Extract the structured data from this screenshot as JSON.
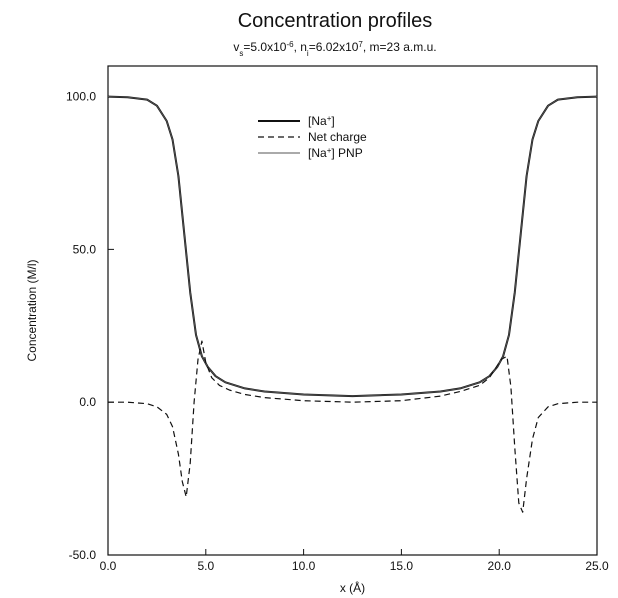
{
  "chart_data": {
    "type": "line",
    "title": "Concentration profiles",
    "subtitle": {
      "parts": [
        {
          "text": "v",
          "sub": "s",
          "rest": "=5.0x10"
        },
        {
          "sup": "-6"
        },
        {
          "text": ", n",
          "sub": "i",
          "rest": "=6.02x10"
        },
        {
          "sup": "7"
        },
        {
          "text": ", m=23 a.m.u."
        }
      ]
    },
    "xlabel": "x (Å)",
    "ylabel": "Concentration (M/l)",
    "xlim": [
      0,
      25
    ],
    "ylim": [
      -50,
      110
    ],
    "xticks": [
      "0.0",
      "5.0",
      "10.0",
      "15.0",
      "20.0",
      "25.0"
    ],
    "xtick_values": [
      0,
      5,
      10,
      15,
      20,
      25
    ],
    "yticks": [
      "-50.0",
      "0.0",
      "50.0",
      "100.0"
    ],
    "ytick_values": [
      -50,
      0,
      50,
      100
    ],
    "grid": false,
    "legend": {
      "placement": "top-center",
      "entries": [
        {
          "label": "[Na",
          "sup": "+",
          "after": "]",
          "series": "na"
        },
        {
          "label": "Net charge",
          "series": "net"
        },
        {
          "label": "[Na",
          "sup": "+",
          "after": "] PNP",
          "series": "pnp"
        }
      ]
    },
    "series": [
      {
        "id": "na",
        "style": "solid",
        "color": "#111111",
        "x": [
          0,
          1,
          2,
          2.5,
          3,
          3.3,
          3.6,
          3.9,
          4.2,
          4.5,
          4.8,
          5.1,
          5.5,
          6,
          7,
          8,
          10,
          12.5,
          15,
          17,
          18,
          19,
          19.5,
          19.9,
          20.2,
          20.5,
          20.8,
          21.1,
          21.4,
          21.7,
          22,
          22.5,
          23,
          24,
          25
        ],
        "y": [
          100,
          99.8,
          99,
          97,
          92,
          86,
          74,
          55,
          36,
          22,
          15,
          11.5,
          8.5,
          6.5,
          4.5,
          3.5,
          2.5,
          2,
          2.5,
          3.5,
          4.5,
          6.5,
          8.5,
          11.5,
          15,
          22,
          36,
          55,
          74,
          86,
          92,
          97,
          99,
          99.8,
          100
        ]
      },
      {
        "id": "pnp",
        "style": "solid-thin",
        "color": "#555555",
        "x": [
          0,
          1,
          2,
          2.5,
          3,
          3.3,
          3.6,
          3.9,
          4.2,
          4.5,
          4.8,
          5.1,
          5.5,
          6,
          7,
          8,
          10,
          12.5,
          15,
          17,
          18,
          19,
          19.5,
          19.9,
          20.2,
          20.5,
          20.8,
          21.1,
          21.4,
          21.7,
          22,
          22.5,
          23,
          24,
          25
        ],
        "y": [
          100,
          99.8,
          99,
          97,
          92,
          86,
          74,
          55,
          36,
          22,
          15,
          11.5,
          8.5,
          6.5,
          4.5,
          3.5,
          2.5,
          2,
          2.5,
          3.5,
          4.5,
          6.5,
          8.5,
          11.5,
          15,
          22,
          36,
          55,
          74,
          86,
          92,
          97,
          99,
          99.8,
          100
        ]
      },
      {
        "id": "net",
        "style": "dashed",
        "color": "#111111",
        "x": [
          0,
          1,
          2,
          2.5,
          3,
          3.3,
          3.6,
          3.8,
          4.0,
          4.2,
          4.4,
          4.6,
          4.8,
          5.0,
          5.3,
          5.7,
          6.2,
          7,
          8,
          10,
          12.5,
          15,
          17,
          18,
          19,
          19.5,
          19.8,
          20.1,
          20.4,
          20.6,
          20.8,
          21.0,
          21.2,
          21.4,
          21.7,
          22.0,
          22.5,
          23,
          24,
          25
        ],
        "y": [
          0,
          0,
          -0.5,
          -1.5,
          -4,
          -8,
          -17,
          -26,
          -31,
          -20,
          0,
          14,
          20,
          13,
          8,
          5.5,
          4,
          2.5,
          1.5,
          0.5,
          0,
          0.5,
          2,
          3.5,
          5.5,
          8,
          11,
          14,
          15,
          5,
          -15,
          -33,
          -36,
          -25,
          -12,
          -5,
          -1.5,
          -0.5,
          0,
          0
        ]
      }
    ]
  }
}
